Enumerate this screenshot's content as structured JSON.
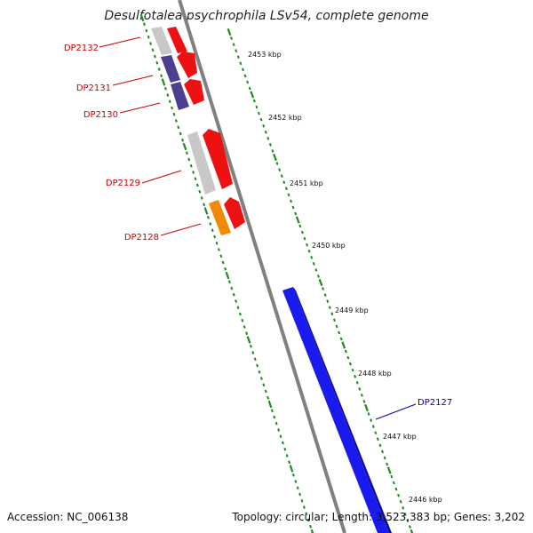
{
  "title": "Desulfotalea psychrophila LSv54, complete genome",
  "footer": {
    "accession": "Accession: NC_006138",
    "summary": "Topology: circular; Length: 3,523,383 bp; Genes: 3,202"
  },
  "colors": {
    "backbone": "#808080",
    "tick": "#1c8a1c",
    "gene_forward": "#ee1111",
    "gene_reverse_plus": "#1a1aee",
    "gene_grey": "#bdbdbd",
    "gene_purple": "#4b3f8f",
    "gene_orange": "#f08a00",
    "label_red": "#cc0000",
    "label_blue": "#0000bb"
  },
  "scale": {
    "tick_labels": [
      "2453 kbp",
      "2452 kbp",
      "2451 kbp",
      "2450 kbp",
      "2449 kbp",
      "2448 kbp",
      "2447 kbp",
      "2446 kbp"
    ]
  },
  "genes": [
    {
      "label": "DP2132"
    },
    {
      "label": "DP2131"
    },
    {
      "label": "DP2130"
    },
    {
      "label": "DP2129"
    },
    {
      "label": "DP2128"
    },
    {
      "label": "DP2127"
    }
  ]
}
